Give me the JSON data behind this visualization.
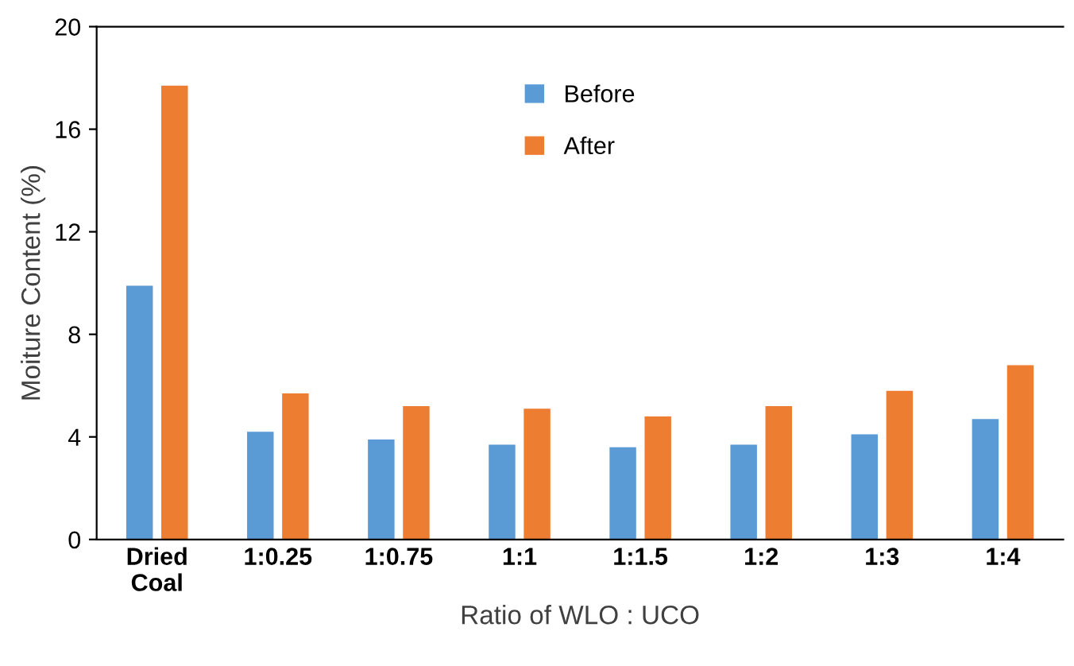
{
  "chart_data": {
    "type": "bar",
    "xlabel": "Ratio of WLO : UCO",
    "ylabel": "Moiture Content (%)",
    "categories": [
      "Dried\nCoal",
      "1:0.25",
      "1:0.75",
      "1:1",
      "1:1.5",
      "1:2",
      "1:3",
      "1:4"
    ],
    "series": [
      {
        "name": "Before",
        "color": "#5b9bd5",
        "values": [
          9.9,
          4.2,
          3.9,
          3.7,
          3.6,
          3.7,
          4.1,
          4.7
        ]
      },
      {
        "name": "After",
        "color": "#ed7d31",
        "values": [
          17.7,
          5.7,
          5.2,
          5.1,
          4.8,
          5.2,
          5.8,
          6.8
        ]
      }
    ],
    "ylim": [
      0,
      20
    ],
    "yticks": [
      0,
      4,
      8,
      12,
      16,
      20
    ],
    "grid": false,
    "legend": "top"
  }
}
